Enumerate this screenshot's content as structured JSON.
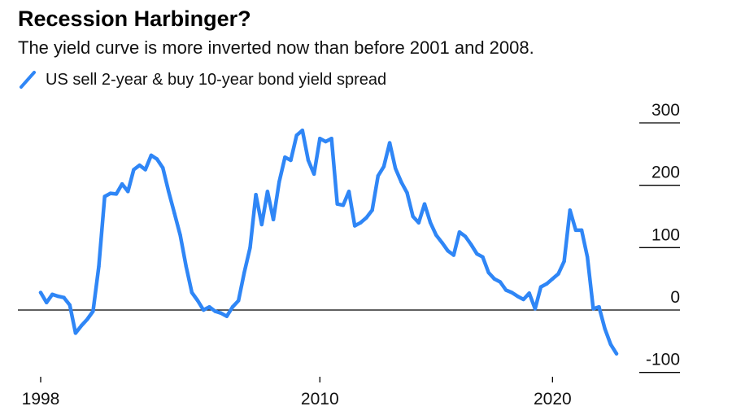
{
  "title": "Recession Harbinger?",
  "subtitle": "The yield curve is more inverted now than before 2001 and 2008.",
  "colors": {
    "series": "#2f86f6",
    "zero_line": "#000000",
    "tick_line": "#000000"
  },
  "chart_data": {
    "type": "line",
    "xlim": [
      1998,
      2022.75
    ],
    "ylim": [
      -100,
      300
    ],
    "y_ticks": [
      "300",
      "200",
      "100",
      "0",
      "-100"
    ],
    "y_tick_values": [
      300,
      200,
      100,
      0,
      -100
    ],
    "x_ticks": [
      "1998",
      "2010",
      "2020"
    ],
    "x_tick_values": [
      1998,
      2010,
      2020
    ],
    "legend_position": "top-left",
    "grid": false,
    "series": [
      {
        "name": "US sell 2-year & buy 10-year bond yield spread",
        "x": [
          1998.0,
          1998.25,
          1998.5,
          1998.75,
          1999.0,
          1999.25,
          1999.5,
          1999.75,
          2000.0,
          2000.25,
          2000.5,
          2000.75,
          2001.0,
          2001.25,
          2001.5,
          2001.75,
          2002.0,
          2002.25,
          2002.5,
          2002.75,
          2003.0,
          2003.25,
          2003.5,
          2003.75,
          2004.0,
          2004.25,
          2004.5,
          2004.75,
          2005.0,
          2005.25,
          2005.5,
          2005.75,
          2006.0,
          2006.25,
          2006.5,
          2006.75,
          2007.0,
          2007.25,
          2007.5,
          2007.75,
          2008.0,
          2008.25,
          2008.5,
          2008.75,
          2009.0,
          2009.25,
          2009.5,
          2009.75,
          2010.0,
          2010.25,
          2010.5,
          2010.75,
          2011.0,
          2011.25,
          2011.5,
          2011.75,
          2012.0,
          2012.25,
          2012.5,
          2012.75,
          2013.0,
          2013.25,
          2013.5,
          2013.75,
          2014.0,
          2014.25,
          2014.5,
          2014.75,
          2015.0,
          2015.25,
          2015.5,
          2015.75,
          2016.0,
          2016.25,
          2016.5,
          2016.75,
          2017.0,
          2017.25,
          2017.5,
          2017.75,
          2018.0,
          2018.25,
          2018.5,
          2018.75,
          2019.0,
          2019.25,
          2019.5,
          2019.75,
          2020.0,
          2020.25,
          2020.5,
          2020.75,
          2021.0,
          2021.25,
          2021.5,
          2021.75,
          2022.0,
          2022.25,
          2022.5,
          2022.75
        ],
        "values": [
          28,
          12,
          25,
          22,
          20,
          8,
          -37,
          -25,
          -15,
          -2,
          70,
          182,
          187,
          186,
          202,
          190,
          225,
          232,
          225,
          248,
          242,
          228,
          190,
          155,
          120,
          70,
          28,
          15,
          0,
          5,
          -2,
          -5,
          -10,
          5,
          15,
          60,
          100,
          185,
          137,
          190,
          145,
          205,
          245,
          240,
          280,
          288,
          240,
          218,
          275,
          270,
          275,
          170,
          168,
          190,
          135,
          140,
          148,
          160,
          215,
          230,
          268,
          227,
          205,
          188,
          150,
          140,
          170,
          140,
          120,
          108,
          95,
          88,
          125,
          118,
          105,
          90,
          85,
          60,
          50,
          45,
          32,
          28,
          22,
          17,
          27,
          2,
          37,
          42,
          50,
          58,
          78,
          160,
          128,
          128,
          85,
          2,
          5,
          -30,
          -55,
          -70
        ]
      }
    ]
  }
}
